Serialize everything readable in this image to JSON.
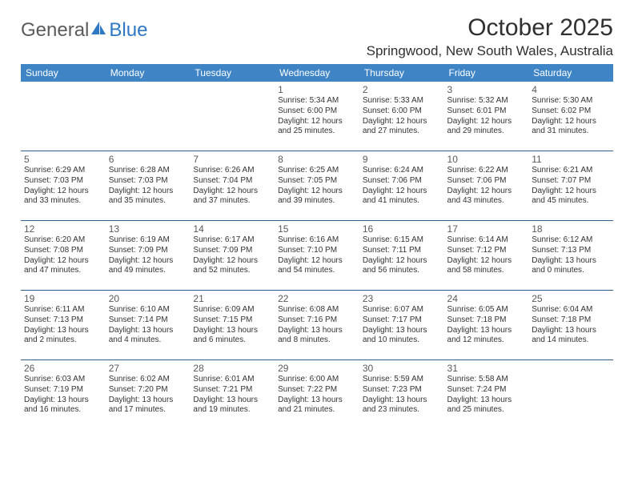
{
  "brand": {
    "part1": "General",
    "part2": "Blue"
  },
  "title": "October 2025",
  "location": "Springwood, New South Wales, Australia",
  "colors": {
    "header_bg": "#3f85c6",
    "header_text": "#ffffff",
    "row_border": "#2f5f8f",
    "logo_gray": "#5b5b5b",
    "logo_blue": "#2f78c4",
    "text": "#303030"
  },
  "weekdays": [
    "Sunday",
    "Monday",
    "Tuesday",
    "Wednesday",
    "Thursday",
    "Friday",
    "Saturday"
  ],
  "weeks": [
    [
      null,
      null,
      null,
      {
        "day": "1",
        "sunrise": "Sunrise: 5:34 AM",
        "sunset": "Sunset: 6:00 PM",
        "daylight": "Daylight: 12 hours and 25 minutes."
      },
      {
        "day": "2",
        "sunrise": "Sunrise: 5:33 AM",
        "sunset": "Sunset: 6:00 PM",
        "daylight": "Daylight: 12 hours and 27 minutes."
      },
      {
        "day": "3",
        "sunrise": "Sunrise: 5:32 AM",
        "sunset": "Sunset: 6:01 PM",
        "daylight": "Daylight: 12 hours and 29 minutes."
      },
      {
        "day": "4",
        "sunrise": "Sunrise: 5:30 AM",
        "sunset": "Sunset: 6:02 PM",
        "daylight": "Daylight: 12 hours and 31 minutes."
      }
    ],
    [
      {
        "day": "5",
        "sunrise": "Sunrise: 6:29 AM",
        "sunset": "Sunset: 7:03 PM",
        "daylight": "Daylight: 12 hours and 33 minutes."
      },
      {
        "day": "6",
        "sunrise": "Sunrise: 6:28 AM",
        "sunset": "Sunset: 7:03 PM",
        "daylight": "Daylight: 12 hours and 35 minutes."
      },
      {
        "day": "7",
        "sunrise": "Sunrise: 6:26 AM",
        "sunset": "Sunset: 7:04 PM",
        "daylight": "Daylight: 12 hours and 37 minutes."
      },
      {
        "day": "8",
        "sunrise": "Sunrise: 6:25 AM",
        "sunset": "Sunset: 7:05 PM",
        "daylight": "Daylight: 12 hours and 39 minutes."
      },
      {
        "day": "9",
        "sunrise": "Sunrise: 6:24 AM",
        "sunset": "Sunset: 7:06 PM",
        "daylight": "Daylight: 12 hours and 41 minutes."
      },
      {
        "day": "10",
        "sunrise": "Sunrise: 6:22 AM",
        "sunset": "Sunset: 7:06 PM",
        "daylight": "Daylight: 12 hours and 43 minutes."
      },
      {
        "day": "11",
        "sunrise": "Sunrise: 6:21 AM",
        "sunset": "Sunset: 7:07 PM",
        "daylight": "Daylight: 12 hours and 45 minutes."
      }
    ],
    [
      {
        "day": "12",
        "sunrise": "Sunrise: 6:20 AM",
        "sunset": "Sunset: 7:08 PM",
        "daylight": "Daylight: 12 hours and 47 minutes."
      },
      {
        "day": "13",
        "sunrise": "Sunrise: 6:19 AM",
        "sunset": "Sunset: 7:09 PM",
        "daylight": "Daylight: 12 hours and 49 minutes."
      },
      {
        "day": "14",
        "sunrise": "Sunrise: 6:17 AM",
        "sunset": "Sunset: 7:09 PM",
        "daylight": "Daylight: 12 hours and 52 minutes."
      },
      {
        "day": "15",
        "sunrise": "Sunrise: 6:16 AM",
        "sunset": "Sunset: 7:10 PM",
        "daylight": "Daylight: 12 hours and 54 minutes."
      },
      {
        "day": "16",
        "sunrise": "Sunrise: 6:15 AM",
        "sunset": "Sunset: 7:11 PM",
        "daylight": "Daylight: 12 hours and 56 minutes."
      },
      {
        "day": "17",
        "sunrise": "Sunrise: 6:14 AM",
        "sunset": "Sunset: 7:12 PM",
        "daylight": "Daylight: 12 hours and 58 minutes."
      },
      {
        "day": "18",
        "sunrise": "Sunrise: 6:12 AM",
        "sunset": "Sunset: 7:13 PM",
        "daylight": "Daylight: 13 hours and 0 minutes."
      }
    ],
    [
      {
        "day": "19",
        "sunrise": "Sunrise: 6:11 AM",
        "sunset": "Sunset: 7:13 PM",
        "daylight": "Daylight: 13 hours and 2 minutes."
      },
      {
        "day": "20",
        "sunrise": "Sunrise: 6:10 AM",
        "sunset": "Sunset: 7:14 PM",
        "daylight": "Daylight: 13 hours and 4 minutes."
      },
      {
        "day": "21",
        "sunrise": "Sunrise: 6:09 AM",
        "sunset": "Sunset: 7:15 PM",
        "daylight": "Daylight: 13 hours and 6 minutes."
      },
      {
        "day": "22",
        "sunrise": "Sunrise: 6:08 AM",
        "sunset": "Sunset: 7:16 PM",
        "daylight": "Daylight: 13 hours and 8 minutes."
      },
      {
        "day": "23",
        "sunrise": "Sunrise: 6:07 AM",
        "sunset": "Sunset: 7:17 PM",
        "daylight": "Daylight: 13 hours and 10 minutes."
      },
      {
        "day": "24",
        "sunrise": "Sunrise: 6:05 AM",
        "sunset": "Sunset: 7:18 PM",
        "daylight": "Daylight: 13 hours and 12 minutes."
      },
      {
        "day": "25",
        "sunrise": "Sunrise: 6:04 AM",
        "sunset": "Sunset: 7:18 PM",
        "daylight": "Daylight: 13 hours and 14 minutes."
      }
    ],
    [
      {
        "day": "26",
        "sunrise": "Sunrise: 6:03 AM",
        "sunset": "Sunset: 7:19 PM",
        "daylight": "Daylight: 13 hours and 16 minutes."
      },
      {
        "day": "27",
        "sunrise": "Sunrise: 6:02 AM",
        "sunset": "Sunset: 7:20 PM",
        "daylight": "Daylight: 13 hours and 17 minutes."
      },
      {
        "day": "28",
        "sunrise": "Sunrise: 6:01 AM",
        "sunset": "Sunset: 7:21 PM",
        "daylight": "Daylight: 13 hours and 19 minutes."
      },
      {
        "day": "29",
        "sunrise": "Sunrise: 6:00 AM",
        "sunset": "Sunset: 7:22 PM",
        "daylight": "Daylight: 13 hours and 21 minutes."
      },
      {
        "day": "30",
        "sunrise": "Sunrise: 5:59 AM",
        "sunset": "Sunset: 7:23 PM",
        "daylight": "Daylight: 13 hours and 23 minutes."
      },
      {
        "day": "31",
        "sunrise": "Sunrise: 5:58 AM",
        "sunset": "Sunset: 7:24 PM",
        "daylight": "Daylight: 13 hours and 25 minutes."
      },
      null
    ]
  ]
}
